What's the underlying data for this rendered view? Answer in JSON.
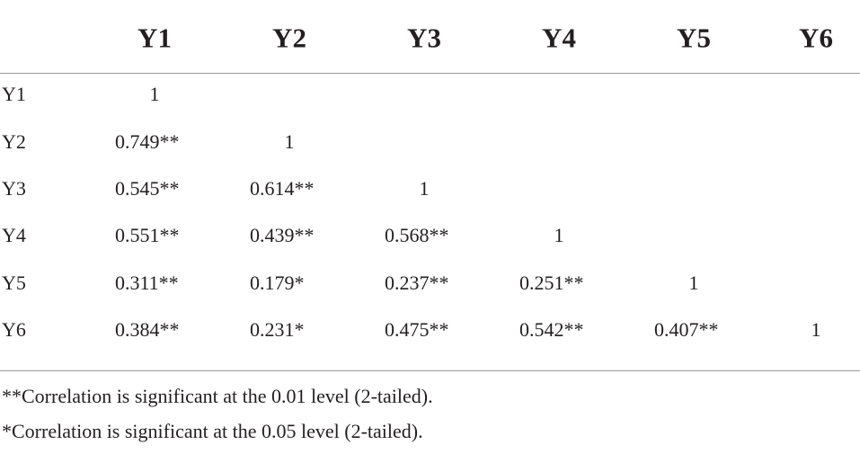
{
  "table": {
    "header": [
      "Y1",
      "Y2",
      "Y3",
      "Y4",
      "Y5",
      "Y6"
    ],
    "rows": [
      {
        "label": "Y1",
        "cells": [
          "1"
        ]
      },
      {
        "label": "Y2",
        "cells": [
          "0.749**",
          "1"
        ]
      },
      {
        "label": "Y3",
        "cells": [
          "0.545**",
          "0.614**",
          "1"
        ]
      },
      {
        "label": "Y4",
        "cells": [
          "0.551**",
          "0.439**",
          "0.568**",
          "1"
        ]
      },
      {
        "label": "Y5",
        "cells": [
          "0.311**",
          "0.179*",
          "0.237**",
          "0.251**",
          "1"
        ]
      },
      {
        "label": "Y6",
        "cells": [
          "0.384**",
          "0.231*",
          "0.475**",
          "0.542**",
          "0.407**",
          "1"
        ]
      }
    ],
    "notes": [
      "**Correlation is significant at the 0.01 level (2-tailed).",
      "*Correlation is significant at the 0.05 level (2-tailed)."
    ]
  }
}
